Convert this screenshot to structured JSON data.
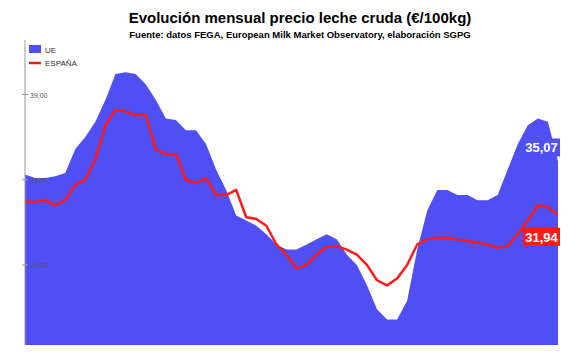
{
  "chart_data": {
    "type": "area_line",
    "title": "Evolución mensual precio leche cruda (€/100kg)",
    "subtitle": "Fuente: datos FEGA, European Milk Market Observatory,  elaboración SGPG",
    "categories": [
      null,
      null,
      null,
      null,
      null,
      null,
      null,
      null,
      null,
      null,
      null,
      null,
      null,
      null,
      null,
      null,
      null,
      null,
      null,
      null,
      null,
      null,
      null,
      null,
      null,
      null,
      null,
      null,
      null,
      null,
      null,
      null,
      null,
      null,
      null,
      null,
      null,
      null,
      null,
      null,
      null,
      null,
      null,
      null,
      null,
      null,
      null,
      null,
      null,
      null,
      null,
      null,
      null,
      null
    ],
    "series": [
      {
        "name": "UE",
        "type": "area",
        "color": "#4f4ff5",
        "values": [
          34.3,
          34.1,
          34.1,
          34.2,
          34.4,
          35.8,
          36.5,
          37.4,
          38.7,
          40.2,
          40.3,
          40.2,
          39.6,
          38.7,
          37.6,
          37.5,
          36.9,
          36.9,
          36.1,
          34.6,
          33.4,
          31.9,
          31.6,
          31.3,
          30.8,
          30.2,
          29.9,
          29.9,
          30.2,
          30.5,
          30.8,
          30.5,
          29.6,
          29.0,
          27.8,
          26.4,
          25.8,
          25.8,
          26.9,
          29.9,
          32.2,
          33.4,
          33.4,
          33.1,
          33.1,
          32.8,
          32.8,
          33.1,
          34.6,
          36.1,
          37.2,
          37.6,
          37.4,
          35.07
        ],
        "value_labels": [
          null,
          null,
          null,
          null,
          null,
          null,
          null,
          null,
          null,
          null,
          null,
          null,
          null,
          null,
          null,
          null,
          null,
          null,
          null,
          null,
          null,
          null,
          null,
          null,
          null,
          null,
          null,
          null,
          null,
          null,
          null,
          null,
          null,
          null,
          null,
          null,
          null,
          null,
          null,
          null,
          null,
          null,
          null,
          null,
          null,
          null,
          null,
          null,
          null,
          null,
          null,
          null,
          null,
          "35,07"
        ]
      },
      {
        "name": "ESPAÑA",
        "type": "line",
        "color": "#ff1a1a",
        "values": [
          32.7,
          32.7,
          32.8,
          32.5,
          32.8,
          33.7,
          34.0,
          35.2,
          37.2,
          38.1,
          38.0,
          37.8,
          37.8,
          35.8,
          35.5,
          35.5,
          34.0,
          33.8,
          34.1,
          33.1,
          33.1,
          33.4,
          31.8,
          31.7,
          31.3,
          30.2,
          29.6,
          28.8,
          29.0,
          29.6,
          30.1,
          30.1,
          29.9,
          29.6,
          29.0,
          28.1,
          27.8,
          28.2,
          29.0,
          30.2,
          30.5,
          30.6,
          30.6,
          30.5,
          30.4,
          30.3,
          30.2,
          30.0,
          30.1,
          30.8,
          31.6,
          32.5,
          32.4,
          31.94
        ],
        "value_labels": [
          null,
          null,
          null,
          null,
          null,
          null,
          null,
          null,
          null,
          null,
          null,
          null,
          null,
          null,
          null,
          null,
          null,
          null,
          null,
          null,
          null,
          null,
          null,
          null,
          null,
          null,
          null,
          null,
          null,
          null,
          null,
          null,
          null,
          null,
          null,
          null,
          null,
          null,
          null,
          null,
          null,
          null,
          null,
          null,
          null,
          null,
          null,
          null,
          null,
          null,
          null,
          null,
          null,
          "31,94"
        ]
      }
    ],
    "ylim": [
      24.3,
      42.2
    ],
    "yticks": [
      {
        "value": 29,
        "label": "29,00"
      },
      {
        "value": 34,
        "label": "34,00"
      },
      {
        "value": 39,
        "label": "39,00"
      }
    ],
    "grid": false,
    "legend": "top-left"
  }
}
